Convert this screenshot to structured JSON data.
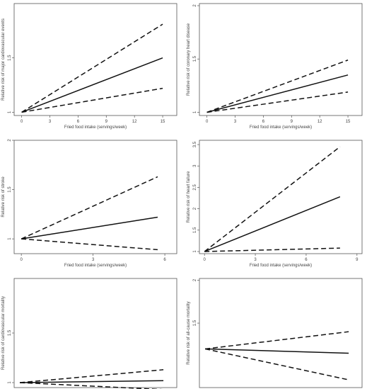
{
  "chart_data": [
    {
      "type": "line",
      "xlabel": "Fried food intake (servings/week)",
      "ylabel": "Relative risk of major cardiovascular events",
      "x_ticks": [
        0,
        3,
        6,
        9,
        12,
        15
      ],
      "y_ticks": [
        1,
        1.5
      ],
      "xlim": [
        -0.8,
        16.5
      ],
      "ylim": [
        0.97,
        2.0
      ],
      "grid": false,
      "series": [
        {
          "role": "estimate",
          "x": [
            0,
            15
          ],
          "y": [
            1,
            1.5
          ]
        },
        {
          "role": "upper",
          "x": [
            0,
            15
          ],
          "y": [
            1,
            1.81
          ]
        },
        {
          "role": "lower",
          "x": [
            0,
            15
          ],
          "y": [
            1,
            1.22
          ]
        }
      ]
    },
    {
      "type": "line",
      "xlabel": "Fried food intake (servings/week)",
      "ylabel": "Relative risk of coronary heart disease",
      "x_ticks": [
        0,
        3,
        6,
        9,
        12,
        15
      ],
      "y_ticks": [
        1,
        1.5,
        2
      ],
      "xlim": [
        -0.8,
        16.5
      ],
      "ylim": [
        0.97,
        2.02
      ],
      "grid": false,
      "series": [
        {
          "role": "estimate",
          "x": [
            0,
            15
          ],
          "y": [
            1,
            1.35
          ]
        },
        {
          "role": "upper",
          "x": [
            0,
            15
          ],
          "y": [
            1,
            1.49
          ]
        },
        {
          "role": "lower",
          "x": [
            0,
            15
          ],
          "y": [
            1,
            1.19
          ]
        }
      ]
    },
    {
      "type": "line",
      "xlabel": "Fried food intake (servings/week)",
      "ylabel": "Relative risk of stroke",
      "x_ticks": [
        0,
        3,
        6
      ],
      "y_ticks": [
        1,
        1.5,
        2
      ],
      "xlim": [
        -0.3,
        6.5
      ],
      "ylim": [
        0.85,
        2.0
      ],
      "grid": false,
      "series": [
        {
          "role": "estimate",
          "x": [
            0,
            5.7
          ],
          "y": [
            1,
            1.22
          ]
        },
        {
          "role": "upper",
          "x": [
            0,
            5.7
          ],
          "y": [
            1,
            1.63
          ]
        },
        {
          "role": "lower",
          "x": [
            0,
            5.7
          ],
          "y": [
            1,
            0.89
          ]
        }
      ]
    },
    {
      "type": "line",
      "xlabel": "Fried food intake (servings/week)",
      "ylabel": "Relative risk of heart failure",
      "x_ticks": [
        0,
        3,
        6,
        9
      ],
      "y_ticks": [
        1,
        1.5,
        2,
        2.5,
        3,
        3.5
      ],
      "xlim": [
        -0.3,
        9.3
      ],
      "ylim": [
        0.95,
        3.6
      ],
      "grid": false,
      "series": [
        {
          "role": "estimate",
          "x": [
            0,
            8
          ],
          "y": [
            1,
            2.28
          ]
        },
        {
          "role": "upper",
          "x": [
            0,
            8
          ],
          "y": [
            1,
            3.45
          ]
        },
        {
          "role": "lower",
          "x": [
            0,
            8
          ],
          "y": [
            1,
            1.08
          ]
        }
      ]
    },
    {
      "type": "line",
      "xlabel": "",
      "ylabel": "Relative risk of cardiovascular mortality",
      "x_ticks": [],
      "y_ticks": [
        1,
        1.5
      ],
      "xlim": [
        -0.3,
        8.2
      ],
      "ylim": [
        0.95,
        2.05
      ],
      "grid": false,
      "series": [
        {
          "role": "estimate",
          "x": [
            0,
            7.5
          ],
          "y": [
            1,
            1.02
          ]
        },
        {
          "role": "upper",
          "x": [
            0,
            7.5
          ],
          "y": [
            1,
            1.13
          ]
        },
        {
          "role": "lower",
          "x": [
            0,
            7.5
          ],
          "y": [
            1,
            0.93
          ]
        }
      ]
    },
    {
      "type": "line",
      "xlabel": "",
      "ylabel": "Relative risk of all-cause mortality",
      "x_ticks": [],
      "y_ticks": [
        1.5,
        2
      ],
      "xlim": [
        -0.3,
        8.2
      ],
      "ylim": [
        0.75,
        2.02
      ],
      "grid": false,
      "series": [
        {
          "role": "estimate",
          "x": [
            0,
            7.5
          ],
          "y": [
            1.2,
            1.15
          ]
        },
        {
          "role": "upper",
          "x": [
            0,
            7.5
          ],
          "y": [
            1.2,
            1.4
          ]
        },
        {
          "role": "lower",
          "x": [
            0,
            7.5
          ],
          "y": [
            1.2,
            0.84
          ]
        }
      ]
    }
  ]
}
